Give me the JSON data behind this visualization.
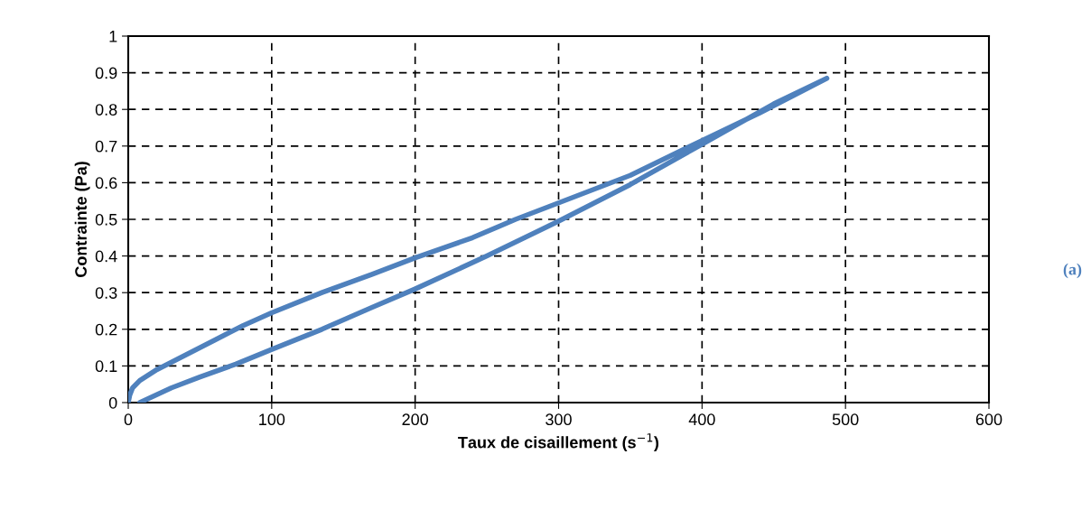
{
  "chart_data": {
    "type": "line",
    "xlabel": "Taux de cisaillement (s$^{−1}$)",
    "ylabel": "Contrainte (Pa)",
    "annotations": [
      "(a)"
    ],
    "series": [
      {
        "color": "#4f81bd",
        "x": [
          0,
          1,
          3,
          8,
          20,
          40,
          60,
          80,
          100,
          135,
          170,
          200,
          240,
          270,
          300,
          350,
          400,
          440,
          487,
          450,
          400,
          350,
          300,
          250,
          200,
          170,
          135,
          100,
          75,
          50,
          30,
          8
        ],
        "values": [
          0,
          0.02,
          0.04,
          0.06,
          0.09,
          0.13,
          0.17,
          0.21,
          0.245,
          0.3,
          0.35,
          0.395,
          0.45,
          0.5,
          0.545,
          0.62,
          0.715,
          0.79,
          0.885,
          0.815,
          0.705,
          0.595,
          0.495,
          0.4,
          0.31,
          0.26,
          0.2,
          0.145,
          0.105,
          0.07,
          0.04,
          0
        ]
      }
    ],
    "xlim": [
      0,
      600
    ],
    "xticks": [
      0,
      100,
      200,
      300,
      400,
      500,
      600
    ],
    "ylim": [
      0,
      1
    ],
    "yticks": [
      0,
      0.1,
      0.2,
      0.3,
      0.4,
      0.5,
      0.6,
      0.7,
      0.8,
      0.9,
      1
    ],
    "grid": true,
    "legend": false,
    "marker": "none",
    "line_style": "solid"
  }
}
